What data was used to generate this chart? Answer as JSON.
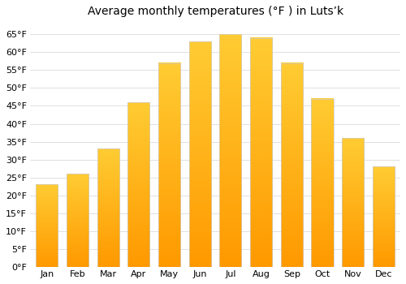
{
  "title": "Average monthly temperatures (°F ) in Lutsʼk",
  "months": [
    "Jan",
    "Feb",
    "Mar",
    "Apr",
    "May",
    "Jun",
    "Jul",
    "Aug",
    "Sep",
    "Oct",
    "Nov",
    "Dec"
  ],
  "values": [
    23,
    26,
    33,
    46,
    57,
    63,
    65,
    64,
    57,
    47,
    36,
    28
  ],
  "bar_color_top": "#FFCC33",
  "bar_color_bottom": "#FF9900",
  "ylim": [
    0,
    68
  ],
  "yticks": [
    0,
    5,
    10,
    15,
    20,
    25,
    30,
    35,
    40,
    45,
    50,
    55,
    60,
    65
  ],
  "ytick_labels": [
    "0°F",
    "5°F",
    "10°F",
    "15°F",
    "20°F",
    "25°F",
    "30°F",
    "35°F",
    "40°F",
    "45°F",
    "50°F",
    "55°F",
    "60°F",
    "65°F"
  ],
  "background_color": "#ffffff",
  "grid_color": "#e0e0e0",
  "title_fontsize": 10,
  "tick_fontsize": 8,
  "bar_width": 0.72,
  "bar_edge_color": "#cccccc",
  "bar_edge_width": 0.5
}
